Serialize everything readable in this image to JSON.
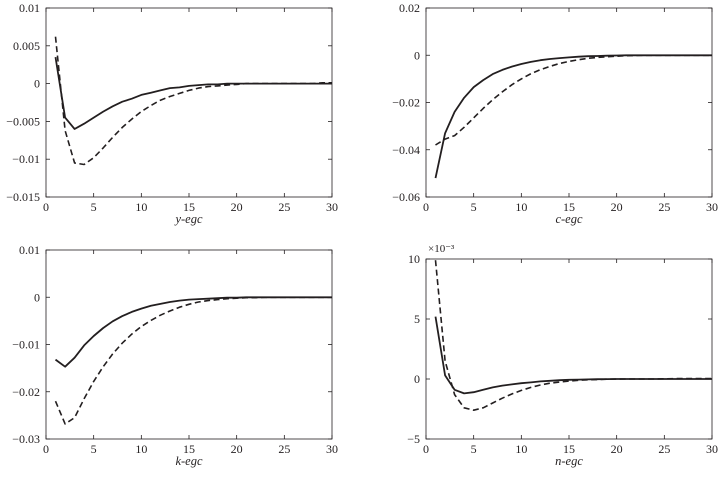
{
  "chart_data": [
    {
      "type": "line",
      "xlabel": "y-egc",
      "xlim": [
        0,
        30
      ],
      "ylim": [
        -0.015,
        0.01
      ],
      "xticks": [
        {
          "v": 0,
          "label": "0"
        },
        {
          "v": 5,
          "label": "5"
        },
        {
          "v": 10,
          "label": "10"
        },
        {
          "v": 15,
          "label": "15"
        },
        {
          "v": 20,
          "label": "20"
        },
        {
          "v": 25,
          "label": "25"
        },
        {
          "v": 30,
          "label": "30"
        }
      ],
      "yticks": [
        {
          "v": 0.01,
          "label": "0.01"
        },
        {
          "v": 0.005,
          "label": "0.005"
        },
        {
          "v": 0,
          "label": "0"
        },
        {
          "v": -0.005,
          "label": "−0.005"
        },
        {
          "v": -0.01,
          "label": "−0.01"
        },
        {
          "v": -0.015,
          "label": "−0.015"
        }
      ],
      "multiplier": "",
      "series": [
        {
          "style": "solid",
          "x": [
            1,
            2,
            3,
            4,
            5,
            6,
            7,
            8,
            9,
            10,
            11,
            12,
            13,
            14,
            15,
            16,
            17,
            18,
            19,
            20,
            21,
            22,
            23,
            24,
            25,
            26,
            27,
            28,
            29,
            30
          ],
          "y": [
            0.0035,
            -0.0045,
            -0.006,
            -0.0053,
            -0.0045,
            -0.0037,
            -0.003,
            -0.0024,
            -0.002,
            -0.0015,
            -0.0012,
            -0.0009,
            -0.0006,
            -0.0005,
            -0.0003,
            -0.0002,
            -0.0001,
            -0.0001,
            0,
            0,
            0,
            0,
            0,
            0,
            0,
            0,
            0,
            0,
            0,
            0
          ]
        },
        {
          "style": "dashed",
          "x": [
            1,
            2,
            3,
            4,
            5,
            6,
            7,
            8,
            9,
            10,
            11,
            12,
            13,
            14,
            15,
            16,
            17,
            18,
            19,
            20,
            21,
            22,
            23,
            24,
            25,
            26,
            27,
            28,
            29,
            30
          ],
          "y": [
            0.0062,
            -0.0062,
            -0.0105,
            -0.0107,
            -0.0098,
            -0.0085,
            -0.0071,
            -0.0058,
            -0.0047,
            -0.0037,
            -0.0029,
            -0.0022,
            -0.0017,
            -0.0013,
            -0.0009,
            -0.0006,
            -0.0004,
            -0.0003,
            -0.0002,
            -0.0001,
            0,
            0,
            0,
            0,
            0,
            0,
            0,
            0,
            0.0001,
            0.0001
          ]
        }
      ]
    },
    {
      "type": "line",
      "xlabel": "c-egc",
      "xlim": [
        0,
        30
      ],
      "ylim": [
        -0.06,
        0.02
      ],
      "xticks": [
        {
          "v": 0,
          "label": "0"
        },
        {
          "v": 5,
          "label": "5"
        },
        {
          "v": 10,
          "label": "10"
        },
        {
          "v": 15,
          "label": "15"
        },
        {
          "v": 20,
          "label": "20"
        },
        {
          "v": 25,
          "label": "25"
        },
        {
          "v": 30,
          "label": "30"
        }
      ],
      "yticks": [
        {
          "v": 0.02,
          "label": "0.02"
        },
        {
          "v": 0,
          "label": "0"
        },
        {
          "v": -0.02,
          "label": "−0.02"
        },
        {
          "v": -0.04,
          "label": "−0.04"
        },
        {
          "v": -0.06,
          "label": "−0.06"
        }
      ],
      "multiplier": "",
      "series": [
        {
          "style": "solid",
          "x": [
            1,
            2,
            3,
            4,
            5,
            6,
            7,
            8,
            9,
            10,
            11,
            12,
            13,
            14,
            15,
            16,
            17,
            18,
            19,
            20,
            21,
            22,
            23,
            24,
            25,
            26,
            27,
            28,
            29,
            30
          ],
          "y": [
            -0.052,
            -0.033,
            -0.024,
            -0.018,
            -0.0135,
            -0.0105,
            -0.008,
            -0.0062,
            -0.0048,
            -0.0037,
            -0.0028,
            -0.0021,
            -0.0016,
            -0.0012,
            -0.0009,
            -0.0006,
            -0.0004,
            -0.0003,
            -0.0002,
            -0.0001,
            0,
            0,
            0,
            0,
            0,
            0,
            0,
            0,
            0,
            0
          ]
        },
        {
          "style": "dashed",
          "x": [
            1,
            2,
            3,
            4,
            5,
            6,
            7,
            8,
            9,
            10,
            11,
            12,
            13,
            14,
            15,
            16,
            17,
            18,
            19,
            20,
            21,
            22,
            23,
            24,
            25,
            26,
            27,
            28,
            29,
            30
          ],
          "y": [
            -0.038,
            -0.0355,
            -0.034,
            -0.0305,
            -0.0265,
            -0.0225,
            -0.0188,
            -0.0155,
            -0.0125,
            -0.01,
            -0.0078,
            -0.0061,
            -0.0047,
            -0.0035,
            -0.0026,
            -0.0019,
            -0.0013,
            -0.0009,
            -0.0006,
            -0.0004,
            -0.0002,
            -0.0001,
            0,
            0,
            0,
            0,
            0,
            0,
            0,
            0
          ]
        }
      ]
    },
    {
      "type": "line",
      "xlabel": "k-egc",
      "xlim": [
        0,
        30
      ],
      "ylim": [
        -0.03,
        0.01
      ],
      "xticks": [
        {
          "v": 0,
          "label": "0"
        },
        {
          "v": 5,
          "label": "5"
        },
        {
          "v": 10,
          "label": "10"
        },
        {
          "v": 15,
          "label": "15"
        },
        {
          "v": 20,
          "label": "20"
        },
        {
          "v": 25,
          "label": "25"
        },
        {
          "v": 30,
          "label": "30"
        }
      ],
      "yticks": [
        {
          "v": 0.01,
          "label": "0.01"
        },
        {
          "v": 0,
          "label": "0"
        },
        {
          "v": -0.01,
          "label": "−0.01"
        },
        {
          "v": -0.02,
          "label": "−0.02"
        },
        {
          "v": -0.03,
          "label": "−0.03"
        }
      ],
      "multiplier": "",
      "series": [
        {
          "style": "solid",
          "x": [
            1,
            2,
            3,
            4,
            5,
            6,
            7,
            8,
            9,
            10,
            11,
            12,
            13,
            14,
            15,
            16,
            17,
            18,
            19,
            20,
            21,
            22,
            23,
            24,
            25,
            26,
            27,
            28,
            29,
            30
          ],
          "y": [
            -0.0132,
            -0.0147,
            -0.0128,
            -0.0102,
            -0.0082,
            -0.0065,
            -0.0051,
            -0.004,
            -0.0031,
            -0.0024,
            -0.0018,
            -0.0014,
            -0.001,
            -0.0007,
            -0.0005,
            -0.0004,
            -0.0003,
            -0.0002,
            -0.0001,
            -0.0001,
            0,
            0,
            0,
            0,
            0,
            0,
            0,
            0,
            0,
            0
          ]
        },
        {
          "style": "dashed",
          "x": [
            1,
            2,
            3,
            4,
            5,
            6,
            7,
            8,
            9,
            10,
            11,
            12,
            13,
            14,
            15,
            16,
            17,
            18,
            19,
            20,
            21,
            22,
            23,
            24,
            25,
            26,
            27,
            28,
            29,
            30
          ],
          "y": [
            -0.022,
            -0.0268,
            -0.0255,
            -0.0215,
            -0.0178,
            -0.0147,
            -0.012,
            -0.0097,
            -0.0078,
            -0.0062,
            -0.0049,
            -0.0038,
            -0.0029,
            -0.0021,
            -0.0015,
            -0.001,
            -0.0007,
            -0.0005,
            -0.0003,
            -0.0002,
            -0.0001,
            -0.0001,
            0,
            0,
            0,
            0,
            0,
            0,
            0,
            0
          ]
        }
      ]
    },
    {
      "type": "line",
      "xlabel": "n-egc",
      "xlim": [
        0,
        30
      ],
      "ylim": [
        -5,
        10
      ],
      "xticks": [
        {
          "v": 0,
          "label": "0"
        },
        {
          "v": 5,
          "label": "5"
        },
        {
          "v": 10,
          "label": "10"
        },
        {
          "v": 15,
          "label": "15"
        },
        {
          "v": 20,
          "label": "20"
        },
        {
          "v": 25,
          "label": "25"
        },
        {
          "v": 30,
          "label": "30"
        }
      ],
      "yticks": [
        {
          "v": 10,
          "label": "10"
        },
        {
          "v": 5,
          "label": "5"
        },
        {
          "v": 0,
          "label": "0"
        },
        {
          "v": -5,
          "label": "−5"
        }
      ],
      "multiplier": "×10⁻³",
      "series": [
        {
          "style": "solid",
          "x": [
            1,
            2,
            3,
            4,
            5,
            6,
            7,
            8,
            9,
            10,
            11,
            12,
            13,
            14,
            15,
            16,
            17,
            18,
            19,
            20,
            21,
            22,
            23,
            24,
            25,
            26,
            27,
            28,
            29,
            30
          ],
          "y": [
            5.2,
            0.3,
            -0.9,
            -1.2,
            -1.1,
            -0.9,
            -0.7,
            -0.55,
            -0.45,
            -0.35,
            -0.28,
            -0.2,
            -0.15,
            -0.1,
            -0.07,
            -0.05,
            -0.03,
            -0.02,
            -0.01,
            0,
            0,
            0,
            0,
            0,
            0,
            0,
            0,
            0,
            0,
            0
          ]
        },
        {
          "style": "dashed",
          "x": [
            1,
            2,
            3,
            4,
            5,
            6,
            7,
            8,
            9,
            10,
            11,
            12,
            13,
            14,
            15,
            16,
            17,
            18,
            19,
            20,
            21,
            22,
            23,
            24,
            25,
            26,
            27,
            28,
            29,
            30
          ],
          "y": [
            9.9,
            1.5,
            -1.3,
            -2.4,
            -2.6,
            -2.4,
            -2.0,
            -1.6,
            -1.25,
            -0.95,
            -0.7,
            -0.5,
            -0.35,
            -0.25,
            -0.17,
            -0.11,
            -0.07,
            -0.04,
            -0.02,
            -0.01,
            0,
            0,
            0,
            0,
            0.02,
            0.03,
            0.03,
            0.03,
            0.03,
            0.03
          ]
        }
      ]
    }
  ]
}
